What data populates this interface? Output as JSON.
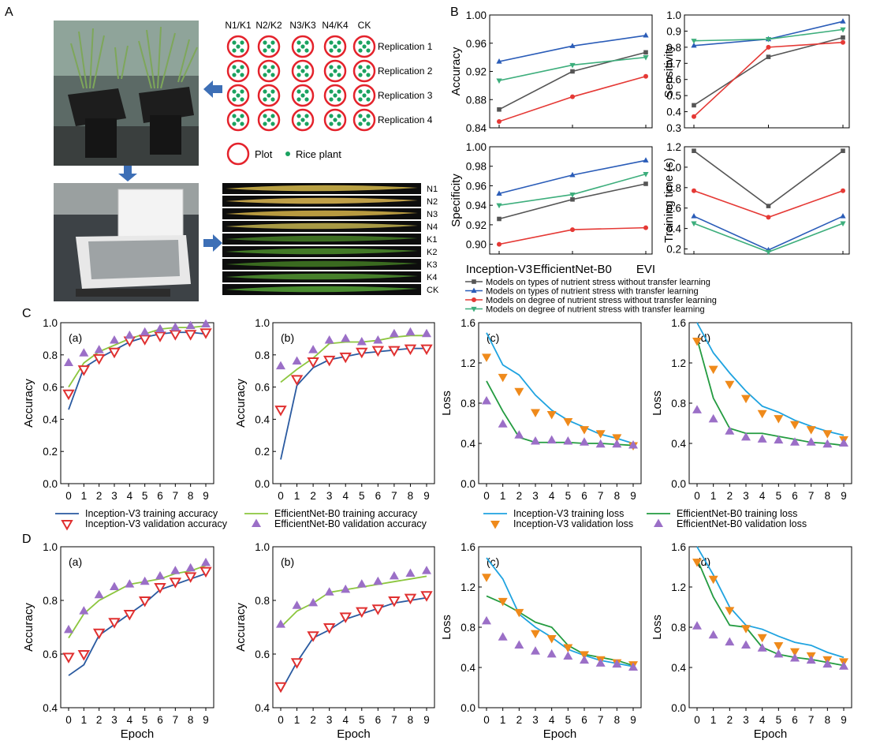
{
  "panel_labels": [
    "A",
    "B",
    "C",
    "D"
  ],
  "panel_a": {
    "column_headers": [
      "N1/K1",
      "N2/K2",
      "N3/K3",
      "N4/K4",
      "CK"
    ],
    "row_labels": [
      "Replication 1",
      "Replication 2",
      "Replication 3",
      "Replication 4"
    ],
    "legend_plot": "Plot",
    "legend_plant": "Rice plant",
    "leaf_labels": [
      "N1",
      "N2",
      "N3",
      "N4",
      "K1",
      "K2",
      "K3",
      "K4",
      "CK"
    ],
    "leaf_colors": [
      "#b8a043",
      "#c0a048",
      "#b89a40",
      "#a89a45",
      "#3d6e22",
      "#427a26",
      "#3a6a20",
      "#47802b",
      "#4a8c30"
    ]
  },
  "colors": {
    "gray": "#555555",
    "blue": "#2a5cb8",
    "red": "#e53935",
    "green": "#3dae7c",
    "cyan": "#1fa3e0",
    "lime": "#8cc63e",
    "dkgreen": "#239b40",
    "navy": "#2a5aa0",
    "tri_red": "#e03030",
    "tri_purple": "#9b6fc7",
    "tri_orange": "#ef8a1b",
    "plot_red": "#e4232c",
    "plant_green": "#1aa260",
    "arrow_blue": "#3d6fb6"
  },
  "chart_data": [
    {
      "id": "B-accuracy",
      "type": "line",
      "categories": [
        "Inception-V3",
        "EfficientNet-B0",
        "EVI"
      ],
      "ylabel": "Accuracy",
      "ylim": [
        0.84,
        1.0
      ],
      "yticks": [
        "0.84",
        "0.88",
        "0.92",
        "0.96",
        "1.00"
      ],
      "series": [
        {
          "key": "gray",
          "values": [
            0.866,
            0.92,
            0.947
          ]
        },
        {
          "key": "blue",
          "values": [
            0.934,
            0.956,
            0.971
          ]
        },
        {
          "key": "red",
          "values": [
            0.849,
            0.884,
            0.913
          ]
        },
        {
          "key": "green",
          "values": [
            0.907,
            0.929,
            0.94
          ]
        }
      ]
    },
    {
      "id": "B-sensitivity",
      "type": "line",
      "categories": [
        "Inception-V3",
        "EfficientNet-B0",
        "EVI"
      ],
      "ylabel": "Sensitivity",
      "ylim": [
        0.3,
        1.0
      ],
      "yticks": [
        "0.3",
        "0.4",
        "0.5",
        "0.6",
        "0.7",
        "0.8",
        "0.9",
        "1.0"
      ],
      "series": [
        {
          "key": "gray",
          "values": [
            0.44,
            0.74,
            0.86
          ]
        },
        {
          "key": "blue",
          "values": [
            0.81,
            0.85,
            0.96
          ]
        },
        {
          "key": "red",
          "values": [
            0.37,
            0.8,
            0.83
          ]
        },
        {
          "key": "green",
          "values": [
            0.84,
            0.85,
            0.91
          ]
        }
      ]
    },
    {
      "id": "B-specificity",
      "type": "line",
      "categories": [
        "Inception-V3",
        "EfficientNet-B0",
        "EVI"
      ],
      "ylabel": "Specificity",
      "ylim": [
        0.89,
        1.0
      ],
      "yticks": [
        "0.90",
        "0.92",
        "0.94",
        "0.96",
        "0.98",
        "1.00"
      ],
      "series": [
        {
          "key": "gray",
          "values": [
            0.926,
            0.946,
            0.962
          ]
        },
        {
          "key": "blue",
          "values": [
            0.952,
            0.971,
            0.986
          ]
        },
        {
          "key": "red",
          "values": [
            0.9,
            0.915,
            0.917
          ]
        },
        {
          "key": "green",
          "values": [
            0.94,
            0.951,
            0.972
          ]
        }
      ]
    },
    {
      "id": "B-training-time",
      "type": "line",
      "categories": [
        "Inception-V3",
        "EfficientNet-B0",
        "EVI"
      ],
      "ylabel": "Training time (s)",
      "ylim": [
        0.15,
        1.2
      ],
      "yticks": [
        "0.2",
        "0.4",
        "0.6",
        "0.8",
        "1.0",
        "1.2"
      ],
      "series": [
        {
          "key": "gray",
          "values": [
            1.16,
            0.62,
            1.16
          ]
        },
        {
          "key": "blue",
          "values": [
            0.52,
            0.19,
            0.52
          ]
        },
        {
          "key": "red",
          "values": [
            0.77,
            0.51,
            0.77
          ]
        },
        {
          "key": "green",
          "values": [
            0.45,
            0.17,
            0.45
          ]
        }
      ]
    },
    {
      "id": "C-a",
      "type": "line",
      "tag": "(a)",
      "x": [
        0,
        1,
        2,
        3,
        4,
        5,
        6,
        7,
        8,
        9
      ],
      "ylabel": "Accuracy",
      "ylim": [
        0,
        1.0
      ],
      "yticks": [
        "0.0",
        "0.2",
        "0.4",
        "0.6",
        "0.8",
        "1.0"
      ],
      "series": [
        {
          "key": "navy",
          "style": "line",
          "values": [
            0.46,
            0.72,
            0.78,
            0.83,
            0.88,
            0.91,
            0.93,
            0.94,
            0.94,
            0.93
          ]
        },
        {
          "key": "lime",
          "style": "line",
          "values": [
            0.6,
            0.75,
            0.82,
            0.86,
            0.9,
            0.93,
            0.96,
            0.97,
            0.97,
            0.98
          ]
        },
        {
          "key": "tri_red",
          "style": "tri-down",
          "values": [
            0.56,
            0.71,
            0.78,
            0.82,
            0.89,
            0.9,
            0.92,
            0.93,
            0.93,
            0.94
          ]
        },
        {
          "key": "tri_purple",
          "style": "tri-up",
          "values": [
            0.75,
            0.81,
            0.83,
            0.89,
            0.92,
            0.94,
            0.96,
            0.97,
            0.98,
            0.99
          ]
        }
      ]
    },
    {
      "id": "C-b",
      "type": "line",
      "tag": "(b)",
      "x": [
        0,
        1,
        2,
        3,
        4,
        5,
        6,
        7,
        8,
        9
      ],
      "ylabel": "Accuracy",
      "ylim": [
        0,
        1.0
      ],
      "yticks": [
        "0.0",
        "0.2",
        "0.4",
        "0.6",
        "0.8",
        "1.0"
      ],
      "series": [
        {
          "key": "navy",
          "style": "line",
          "values": [
            0.15,
            0.61,
            0.72,
            0.77,
            0.79,
            0.81,
            0.82,
            0.83,
            0.84,
            0.84
          ]
        },
        {
          "key": "lime",
          "style": "line",
          "values": [
            0.63,
            0.71,
            0.78,
            0.87,
            0.88,
            0.88,
            0.89,
            0.91,
            0.92,
            0.92
          ]
        },
        {
          "key": "tri_red",
          "style": "tri-down",
          "values": [
            0.46,
            0.65,
            0.76,
            0.77,
            0.79,
            0.82,
            0.83,
            0.83,
            0.84,
            0.84
          ]
        },
        {
          "key": "tri_purple",
          "style": "tri-up",
          "values": [
            0.73,
            0.76,
            0.83,
            0.89,
            0.9,
            0.88,
            0.89,
            0.93,
            0.94,
            0.93
          ]
        }
      ]
    },
    {
      "id": "C-c",
      "type": "line",
      "tag": "(c)",
      "x": [
        0,
        1,
        2,
        3,
        4,
        5,
        6,
        7,
        8,
        9
      ],
      "ylabel": "Loss",
      "ylim": [
        0,
        1.6
      ],
      "yticks": [
        "0.0",
        "0.4",
        "0.8",
        "1.2",
        "1.6"
      ],
      "series": [
        {
          "key": "cyan",
          "style": "line",
          "values": [
            1.5,
            1.18,
            1.08,
            0.88,
            0.73,
            0.63,
            0.56,
            0.49,
            0.45,
            0.4
          ]
        },
        {
          "key": "dkgreen",
          "style": "line",
          "values": [
            1.02,
            0.72,
            0.46,
            0.41,
            0.41,
            0.41,
            0.4,
            0.4,
            0.39,
            0.38
          ]
        },
        {
          "key": "tri_orange",
          "style": "tri-down",
          "values": [
            1.26,
            1.06,
            0.92,
            0.71,
            0.69,
            0.62,
            0.54,
            0.5,
            0.46,
            0.38
          ]
        },
        {
          "key": "tri_purple",
          "style": "tri-up",
          "values": [
            0.82,
            0.59,
            0.48,
            0.42,
            0.43,
            0.42,
            0.41,
            0.39,
            0.39,
            0.38
          ]
        }
      ]
    },
    {
      "id": "C-d",
      "type": "line",
      "tag": "(d)",
      "x": [
        0,
        1,
        2,
        3,
        4,
        5,
        6,
        7,
        8,
        9
      ],
      "ylabel": "Loss",
      "ylim": [
        0,
        1.6
      ],
      "yticks": [
        "0.0",
        "0.4",
        "0.8",
        "1.2",
        "1.6"
      ],
      "series": [
        {
          "key": "cyan",
          "style": "line",
          "values": [
            1.6,
            1.3,
            1.1,
            0.92,
            0.77,
            0.71,
            0.63,
            0.57,
            0.52,
            0.48
          ]
        },
        {
          "key": "dkgreen",
          "style": "line",
          "values": [
            1.44,
            0.85,
            0.55,
            0.5,
            0.5,
            0.47,
            0.44,
            0.41,
            0.4,
            0.38
          ]
        },
        {
          "key": "tri_orange",
          "style": "tri-down",
          "values": [
            1.42,
            1.14,
            0.99,
            0.85,
            0.7,
            0.65,
            0.59,
            0.54,
            0.5,
            0.44
          ]
        },
        {
          "key": "tri_purple",
          "style": "tri-up",
          "values": [
            0.73,
            0.64,
            0.52,
            0.46,
            0.44,
            0.43,
            0.41,
            0.41,
            0.39,
            0.4
          ]
        }
      ]
    },
    {
      "id": "D-a",
      "type": "line",
      "tag": "(a)",
      "x": [
        0,
        1,
        2,
        3,
        4,
        5,
        6,
        7,
        8,
        9
      ],
      "xlabel": "Epoch",
      "ylabel": "Accuracy",
      "ylim": [
        0.4,
        1.0
      ],
      "yticks": [
        "0.4",
        "0.6",
        "0.8",
        "1.0"
      ],
      "series": [
        {
          "key": "navy",
          "style": "line",
          "values": [
            0.52,
            0.56,
            0.67,
            0.71,
            0.75,
            0.79,
            0.84,
            0.86,
            0.88,
            0.9
          ]
        },
        {
          "key": "lime",
          "style": "line",
          "values": [
            0.66,
            0.75,
            0.8,
            0.83,
            0.86,
            0.87,
            0.88,
            0.9,
            0.91,
            0.93
          ]
        },
        {
          "key": "tri_red",
          "style": "tri-down",
          "values": [
            0.59,
            0.6,
            0.68,
            0.72,
            0.75,
            0.8,
            0.85,
            0.87,
            0.89,
            0.91
          ]
        },
        {
          "key": "tri_purple",
          "style": "tri-up",
          "values": [
            0.69,
            0.76,
            0.82,
            0.85,
            0.86,
            0.87,
            0.89,
            0.91,
            0.92,
            0.94
          ]
        }
      ]
    },
    {
      "id": "D-b",
      "type": "line",
      "tag": "(b)",
      "x": [
        0,
        1,
        2,
        3,
        4,
        5,
        6,
        7,
        8,
        9
      ],
      "xlabel": "Epoch",
      "ylabel": "Accuracy",
      "ylim": [
        0.4,
        1.0
      ],
      "yticks": [
        "0.4",
        "0.6",
        "0.8",
        "1.0"
      ],
      "series": [
        {
          "key": "navy",
          "style": "line",
          "values": [
            0.46,
            0.57,
            0.66,
            0.69,
            0.73,
            0.75,
            0.77,
            0.79,
            0.8,
            0.81
          ]
        },
        {
          "key": "lime",
          "style": "line",
          "values": [
            0.7,
            0.76,
            0.79,
            0.83,
            0.84,
            0.85,
            0.86,
            0.87,
            0.88,
            0.89
          ]
        },
        {
          "key": "tri_red",
          "style": "tri-down",
          "values": [
            0.48,
            0.57,
            0.67,
            0.7,
            0.74,
            0.76,
            0.77,
            0.8,
            0.81,
            0.82
          ]
        },
        {
          "key": "tri_purple",
          "style": "tri-up",
          "values": [
            0.71,
            0.78,
            0.79,
            0.83,
            0.84,
            0.86,
            0.87,
            0.89,
            0.9,
            0.91
          ]
        }
      ]
    },
    {
      "id": "D-c",
      "type": "line",
      "tag": "(c)",
      "x": [
        0,
        1,
        2,
        3,
        4,
        5,
        6,
        7,
        8,
        9
      ],
      "xlabel": "Epoch",
      "ylabel": "Loss",
      "ylim": [
        0,
        1.6
      ],
      "yticks": [
        "0.0",
        "0.4",
        "0.8",
        "1.2",
        "1.6"
      ],
      "series": [
        {
          "key": "cyan",
          "style": "line",
          "values": [
            1.49,
            1.28,
            0.93,
            0.8,
            0.7,
            0.58,
            0.52,
            0.47,
            0.44,
            0.41
          ]
        },
        {
          "key": "dkgreen",
          "style": "line",
          "values": [
            1.11,
            1.04,
            0.95,
            0.85,
            0.8,
            0.62,
            0.53,
            0.5,
            0.47,
            0.42
          ]
        },
        {
          "key": "tri_orange",
          "style": "tri-down",
          "values": [
            1.3,
            1.06,
            0.95,
            0.74,
            0.69,
            0.6,
            0.53,
            0.48,
            0.45,
            0.43
          ]
        },
        {
          "key": "tri_purple",
          "style": "tri-up",
          "values": [
            0.86,
            0.7,
            0.62,
            0.56,
            0.53,
            0.51,
            0.47,
            0.44,
            0.43,
            0.4
          ]
        }
      ]
    },
    {
      "id": "D-d",
      "type": "line",
      "tag": "(d)",
      "x": [
        0,
        1,
        2,
        3,
        4,
        5,
        6,
        7,
        8,
        9
      ],
      "xlabel": "Epoch",
      "ylabel": "Loss",
      "ylim": [
        0,
        1.6
      ],
      "yticks": [
        "0.0",
        "0.4",
        "0.8",
        "1.2",
        "1.6"
      ],
      "series": [
        {
          "key": "cyan",
          "style": "line",
          "values": [
            1.6,
            1.32,
            1.0,
            0.82,
            0.78,
            0.71,
            0.65,
            0.62,
            0.55,
            0.5
          ]
        },
        {
          "key": "dkgreen",
          "style": "line",
          "values": [
            1.48,
            1.1,
            0.82,
            0.8,
            0.6,
            0.53,
            0.5,
            0.48,
            0.45,
            0.42
          ]
        },
        {
          "key": "tri_orange",
          "style": "tri-down",
          "values": [
            1.45,
            1.28,
            0.97,
            0.79,
            0.7,
            0.62,
            0.56,
            0.52,
            0.48,
            0.46
          ]
        },
        {
          "key": "tri_purple",
          "style": "tri-up",
          "values": [
            0.81,
            0.72,
            0.65,
            0.62,
            0.59,
            0.53,
            0.49,
            0.47,
            0.43,
            0.41
          ]
        }
      ]
    }
  ],
  "legend_b": [
    {
      "key": "gray",
      "marker": "square",
      "label": "Models on types of nutrient stress without transfer learning"
    },
    {
      "key": "blue",
      "marker": "tri-up",
      "label": "Models on types of nutrient stress with transfer learning"
    },
    {
      "key": "red",
      "marker": "circle",
      "label": "Models on degree of nutrient stress without transfer learning"
    },
    {
      "key": "green",
      "marker": "tri-down",
      "label": "Models on degree of nutrient stress with transfer learning"
    }
  ],
  "legend_acc": [
    {
      "key": "navy",
      "style": "line",
      "label": "Inception-V3 training accuracy"
    },
    {
      "key": "lime",
      "style": "line",
      "label": "EfficientNet-B0 training accuracy"
    },
    {
      "key": "tri_red",
      "style": "tri-down",
      "label": "Inception-V3 validation accuracy"
    },
    {
      "key": "tri_purple",
      "style": "tri-up",
      "label": "EfficientNet-B0 validation accuracy"
    }
  ],
  "legend_loss": [
    {
      "key": "cyan",
      "style": "line",
      "label": "Inception-V3 training loss"
    },
    {
      "key": "dkgreen",
      "style": "line",
      "label": "EfficientNet-B0 training loss"
    },
    {
      "key": "tri_orange",
      "style": "tri-down",
      "label": "Inception-V3 validation loss"
    },
    {
      "key": "tri_purple",
      "style": "tri-up",
      "label": "EfficientNet-B0 validation loss"
    }
  ]
}
